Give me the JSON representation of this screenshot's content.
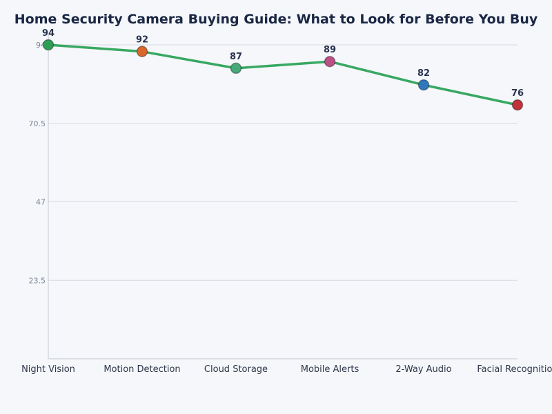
{
  "chart_data": {
    "type": "line",
    "title": "Home Security Camera Buying Guide: What to Look for Before You Buy",
    "categories": [
      "Night Vision",
      "Motion Detection",
      "Cloud Storage",
      "Mobile Alerts",
      "2-Way Audio",
      "Facial Recognition"
    ],
    "values": [
      94,
      92,
      87,
      89,
      82,
      76
    ],
    "ylim": [
      0,
      94
    ],
    "yticks": [
      "23.5",
      "47",
      "70.5",
      "94"
    ],
    "grid": true,
    "line_color": "#38a862",
    "marker_colors": [
      "#2e9e57",
      "#d9662b",
      "#47a97a",
      "#bb4f86",
      "#2f78be",
      "#c2323a"
    ],
    "xlabel": "",
    "ylabel": ""
  }
}
